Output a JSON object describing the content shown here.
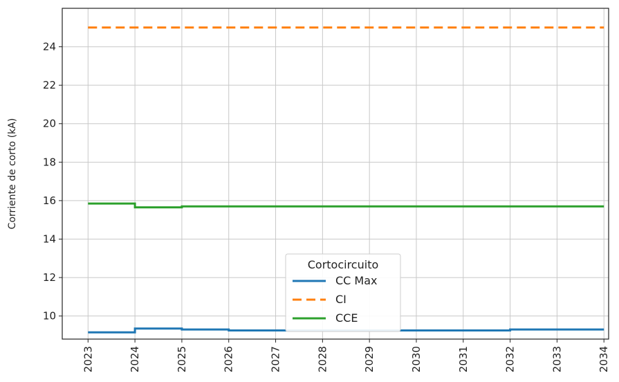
{
  "chart_data": {
    "type": "line",
    "title": "",
    "xlabel": "",
    "ylabel": "Corriente de corto (kA)",
    "x": [
      2023,
      2024,
      2025,
      2026,
      2027,
      2028,
      2029,
      2030,
      2031,
      2032,
      2033,
      2034
    ],
    "xlim": [
      2022.45,
      2034.1
    ],
    "ylim": [
      8.8,
      26.0
    ],
    "yticks": [
      10,
      12,
      14,
      16,
      18,
      20,
      22,
      24
    ],
    "grid": true,
    "legend": {
      "title": "Cortocircuito",
      "placement": "lower-center"
    },
    "series": [
      {
        "name": "CC Max",
        "color": "#1f77b4",
        "style": "solid",
        "step": true,
        "values": [
          9.15,
          9.35,
          9.3,
          9.25,
          9.25,
          9.25,
          9.25,
          9.25,
          9.25,
          9.3,
          9.3,
          9.3
        ]
      },
      {
        "name": "CI",
        "color": "#ff7f0e",
        "style": "dashed",
        "step": true,
        "values": [
          25.0,
          25.0,
          25.0,
          25.0,
          25.0,
          25.0,
          25.0,
          25.0,
          25.0,
          25.0,
          25.0,
          25.0
        ]
      },
      {
        "name": "CCE",
        "color": "#2ca02c",
        "style": "solid",
        "step": true,
        "values": [
          15.85,
          15.65,
          15.7,
          15.7,
          15.7,
          15.7,
          15.7,
          15.7,
          15.7,
          15.7,
          15.7,
          15.7
        ]
      }
    ]
  }
}
